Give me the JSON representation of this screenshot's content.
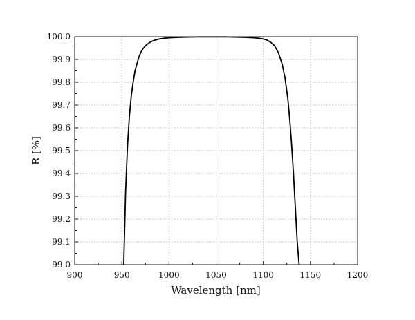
{
  "chart_data": {
    "type": "line",
    "title": "",
    "xlabel": "Wavelength [nm]",
    "ylabel": "R [%]",
    "xlim": [
      900,
      1200
    ],
    "ylim": [
      99.0,
      100.0
    ],
    "x_ticks": [
      900,
      950,
      1000,
      1050,
      1100,
      1150,
      1200
    ],
    "y_ticks": [
      99.0,
      99.1,
      99.2,
      99.3,
      99.4,
      99.5,
      99.6,
      99.7,
      99.8,
      99.9,
      100.0
    ],
    "x_tick_labels": [
      "900",
      "950",
      "1000",
      "1050",
      "1100",
      "1150",
      "1200"
    ],
    "y_tick_labels": [
      "99.0",
      "99.1",
      "99.2",
      "99.3",
      "99.4",
      "99.5",
      "99.6",
      "99.7",
      "99.8",
      "99.9",
      "100.0"
    ],
    "grid": true,
    "series": [
      {
        "color": "#000000",
        "x": [
          952,
          954,
          956,
          958,
          960,
          962,
          964,
          966,
          968,
          970,
          972,
          975,
          978,
          981,
          985,
          990,
          995,
          1000,
          1010,
          1020,
          1030,
          1040,
          1050,
          1060,
          1070,
          1080,
          1090,
          1095,
          1100,
          1104,
          1108,
          1112,
          1116,
          1120,
          1123,
          1126,
          1128,
          1130,
          1132,
          1134,
          1136,
          1138
        ],
        "y": [
          99.0,
          99.32,
          99.52,
          99.65,
          99.74,
          99.8,
          99.85,
          99.88,
          99.91,
          99.93,
          99.945,
          99.96,
          99.97,
          99.978,
          99.985,
          99.99,
          99.993,
          99.995,
          99.997,
          99.998,
          99.999,
          99.999,
          99.999,
          99.999,
          99.998,
          99.997,
          99.995,
          99.993,
          99.99,
          99.985,
          99.975,
          99.96,
          99.93,
          99.88,
          99.82,
          99.73,
          99.64,
          99.53,
          99.4,
          99.25,
          99.1,
          99.0
        ]
      }
    ]
  }
}
